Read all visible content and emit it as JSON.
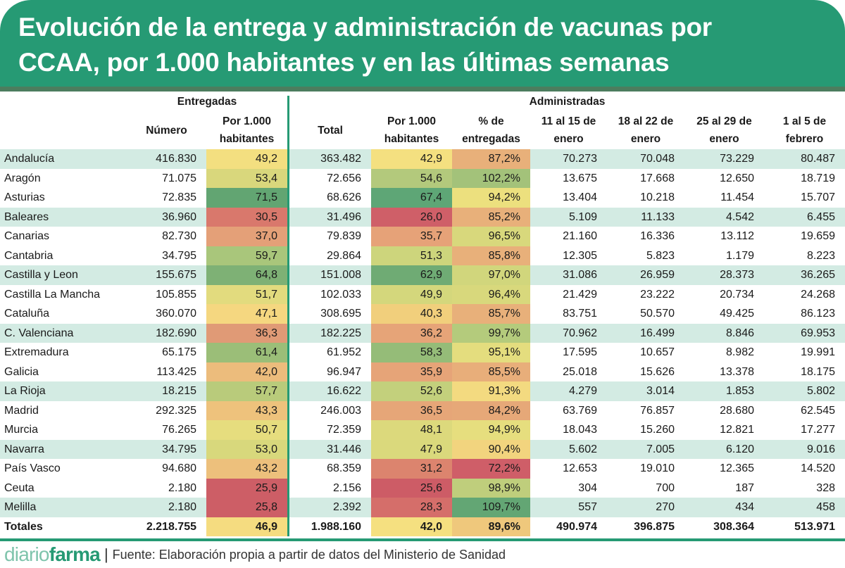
{
  "title": {
    "line1": "Evolución de la entrega y administración de vacunas por",
    "line2": "CCAA, por 1.000 habitantes y en las últimas semanas"
  },
  "groups": {
    "entregadas": "Entregadas",
    "administradas": "Administradas"
  },
  "columns": [
    {
      "l1": "",
      "l2": "Número"
    },
    {
      "l1": "Por 1.000",
      "l2": "habitantes"
    },
    {
      "l1": "",
      "l2": "Total"
    },
    {
      "l1": "Por 1.000",
      "l2": "habitantes"
    },
    {
      "l1": "% de",
      "l2": "entregadas"
    },
    {
      "l1": "11 al 15 de",
      "l2": "enero"
    },
    {
      "l1": "18 al 22 de",
      "l2": "enero"
    },
    {
      "l1": "25 al 29 de",
      "l2": "enero"
    },
    {
      "l1": "1 al 5 de",
      "l2": "febrero"
    }
  ],
  "rows": [
    {
      "name": "Andalucía",
      "v": [
        "416.830",
        "49,2",
        "363.482",
        "42,9",
        "87,2%",
        "70.273",
        "70.048",
        "73.229",
        "80.487"
      ],
      "c": [
        "#f3df80",
        "#f4e080",
        "#e8b07a"
      ]
    },
    {
      "name": "Aragón",
      "v": [
        "71.075",
        "53,4",
        "72.656",
        "54,6",
        "102,2%",
        "13.675",
        "17.668",
        "12.650",
        "18.719"
      ],
      "c": [
        "#d9d77c",
        "#b3c97c",
        "#a3c27a"
      ]
    },
    {
      "name": "Asturias",
      "v": [
        "72.835",
        "71,5",
        "68.626",
        "67,4",
        "94,2%",
        "13.404",
        "10.218",
        "11.454",
        "15.707"
      ],
      "c": [
        "#62a572",
        "#5ea676",
        "#ece07e"
      ]
    },
    {
      "name": "Baleares",
      "v": [
        "36.960",
        "30,5",
        "31.496",
        "26,0",
        "85,2%",
        "5.109",
        "11.133",
        "4.542",
        "6.455"
      ],
      "c": [
        "#d9786c",
        "#cf5f68",
        "#e8b07a"
      ]
    },
    {
      "name": "Canarias",
      "v": [
        "82.730",
        "37,0",
        "79.839",
        "35,7",
        "96,5%",
        "21.160",
        "16.336",
        "13.112",
        "19.659"
      ],
      "c": [
        "#e4a078",
        "#e6a278",
        "#d8d87c"
      ]
    },
    {
      "name": "Cantabria",
      "v": [
        "34.795",
        "59,7",
        "29.864",
        "51,3",
        "85,8%",
        "12.305",
        "5.823",
        "1.179",
        "8.223"
      ],
      "c": [
        "#a9c67b",
        "#cdd57c",
        "#e8b07a"
      ]
    },
    {
      "name": "Castilla y Leon",
      "v": [
        "155.675",
        "64,8",
        "151.008",
        "62,9",
        "97,0%",
        "31.086",
        "26.959",
        "28.373",
        "36.265"
      ],
      "c": [
        "#7eb175",
        "#6fab74",
        "#d1d67c"
      ]
    },
    {
      "name": "Castilla La Mancha",
      "v": [
        "105.855",
        "51,7",
        "102.033",
        "49,9",
        "96,4%",
        "21.429",
        "23.222",
        "20.734",
        "24.268"
      ],
      "c": [
        "#e2db7e",
        "#d4d77c",
        "#d8d87c"
      ]
    },
    {
      "name": "Cataluña",
      "v": [
        "360.070",
        "47,1",
        "308.695",
        "40,3",
        "85,7%",
        "83.751",
        "50.570",
        "49.425",
        "86.123"
      ],
      "c": [
        "#f5d780",
        "#f1cf7c",
        "#e8b07a"
      ]
    },
    {
      "name": "C. Valenciana",
      "v": [
        "182.690",
        "36,3",
        "182.225",
        "36,2",
        "99,7%",
        "70.962",
        "16.499",
        "8.846",
        "69.953"
      ],
      "c": [
        "#e09a76",
        "#e6a478",
        "#b4cb7c"
      ]
    },
    {
      "name": "Extremadura",
      "v": [
        "65.175",
        "61,4",
        "61.952",
        "58,3",
        "95,1%",
        "17.595",
        "10.657",
        "8.982",
        "19.991"
      ],
      "c": [
        "#9bbe78",
        "#95bc78",
        "#e4dd7e"
      ]
    },
    {
      "name": "Galicia",
      "v": [
        "113.425",
        "42,0",
        "96.947",
        "35,9",
        "85,5%",
        "25.018",
        "15.626",
        "13.378",
        "18.175"
      ],
      "c": [
        "#ecbc7c",
        "#e6a478",
        "#e8ae7a"
      ]
    },
    {
      "name": "La Rioja",
      "v": [
        "18.215",
        "57,7",
        "16.622",
        "52,6",
        "91,3%",
        "4.279",
        "3.014",
        "1.853",
        "5.802"
      ],
      "c": [
        "#b9cb7b",
        "#c3d07c",
        "#f3da80"
      ]
    },
    {
      "name": "Madrid",
      "v": [
        "292.325",
        "43,3",
        "246.003",
        "36,5",
        "84,2%",
        "63.769",
        "76.857",
        "28.680",
        "62.545"
      ],
      "c": [
        "#eec27c",
        "#e6a678",
        "#e6a878"
      ]
    },
    {
      "name": "Murcia",
      "v": [
        "76.265",
        "50,7",
        "72.359",
        "48,1",
        "94,9%",
        "18.043",
        "15.260",
        "12.821",
        "17.277"
      ],
      "c": [
        "#e6dd7e",
        "#dcd97c",
        "#e6de7e"
      ]
    },
    {
      "name": "Navarra",
      "v": [
        "34.795",
        "53,0",
        "31.446",
        "47,9",
        "90,4%",
        "5.602",
        "7.005",
        "6.120",
        "9.016"
      ],
      "c": [
        "#d8d87c",
        "#dad97c",
        "#f2d47e"
      ]
    },
    {
      "name": "País Vasco",
      "v": [
        "94.680",
        "43,2",
        "68.359",
        "31,2",
        "72,2%",
        "12.653",
        "19.010",
        "12.365",
        "14.520"
      ],
      "c": [
        "#edc07c",
        "#dc846e",
        "#cf5e68"
      ]
    },
    {
      "name": "Ceuta",
      "v": [
        "2.180",
        "25,9",
        "2.156",
        "25,6",
        "98,9%",
        "304",
        "700",
        "187",
        "328"
      ],
      "c": [
        "#cd5e66",
        "#cd5c66",
        "#bfce7c"
      ]
    },
    {
      "name": "Melilla",
      "v": [
        "2.180",
        "25,8",
        "2.392",
        "28,3",
        "109,7%",
        "557",
        "270",
        "434",
        "458"
      ],
      "c": [
        "#cd5e66",
        "#d56e6a",
        "#63a674"
      ]
    }
  ],
  "totals": {
    "name": "Totales",
    "v": [
      "2.218.755",
      "46,9",
      "1.988.160",
      "42,0",
      "89,6%",
      "490.974",
      "396.875",
      "308.364",
      "513.971"
    ],
    "c": [
      "#f5dc80",
      "#f5e080",
      "#efc87c"
    ]
  },
  "footer": {
    "logo_part1": "diario",
    "logo_part2": "farma",
    "separator": "|",
    "source": "Fuente: Elaboración propia a partir de datos del Ministerio de Sanidad"
  },
  "colors": {
    "brand_green": "#269a74",
    "stripe": "#d3ebe3"
  }
}
